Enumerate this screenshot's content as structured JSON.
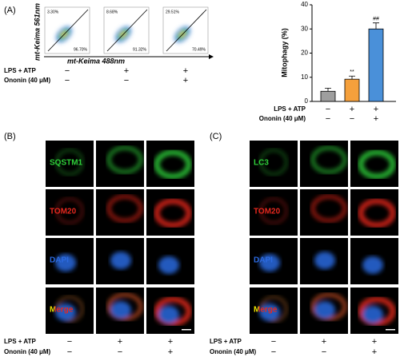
{
  "panel_a": {
    "label": "(A)",
    "flow": {
      "y_label": "mt-Keima 561nm",
      "x_label": "mt-Keima 488nm",
      "plots": [
        {
          "upper": "3.30%",
          "lower": "96.70%"
        },
        {
          "upper": "8.68%",
          "lower": "91.32%"
        },
        {
          "upper": "29.51%",
          "lower": "70.49%"
        }
      ]
    },
    "conditions": [
      {
        "name": "LPS + ATP",
        "marks": [
          "−",
          "+",
          "+"
        ]
      },
      {
        "name": "Ononin (40 μM)",
        "marks": [
          "−",
          "−",
          "+"
        ]
      }
    ]
  },
  "chart_data": {
    "type": "bar",
    "y_label": "Mitophagy (%)",
    "categories": [
      null,
      null,
      null
    ],
    "values": [
      4.2,
      9.2,
      30
    ],
    "errors": [
      1.3,
      1.3,
      2.5
    ],
    "colors": [
      "#9e9e9e",
      "#f5a03c",
      "#4a90d9"
    ],
    "annotations": [
      null,
      "**",
      "##"
    ],
    "ylim": [
      0,
      40
    ],
    "yticks": [
      0,
      10,
      20,
      30,
      40
    ],
    "conditions": [
      {
        "name": "LPS + ATP",
        "marks": [
          "−",
          "+",
          "+"
        ]
      },
      {
        "name": "Ononin (40 μM)",
        "marks": [
          "−",
          "−",
          "+"
        ]
      }
    ]
  },
  "panel_b": {
    "label": "(B)",
    "rows": [
      "SQSTM1",
      "TOM20",
      "DAPI",
      "Merge"
    ],
    "conditions": [
      {
        "name": "LPS + ATP",
        "marks": [
          "−",
          "+",
          "+"
        ]
      },
      {
        "name": "Ononin (40 μM)",
        "marks": [
          "−",
          "−",
          "+"
        ]
      }
    ]
  },
  "panel_c": {
    "label": "(C)",
    "rows": [
      "LC3",
      "TOM20",
      "DAPI",
      "Merge"
    ],
    "conditions": [
      {
        "name": "LPS + ATP",
        "marks": [
          "−",
          "+",
          "+"
        ]
      },
      {
        "name": "Ononin (40 μM)",
        "marks": [
          "−",
          "−",
          "+"
        ]
      }
    ]
  }
}
